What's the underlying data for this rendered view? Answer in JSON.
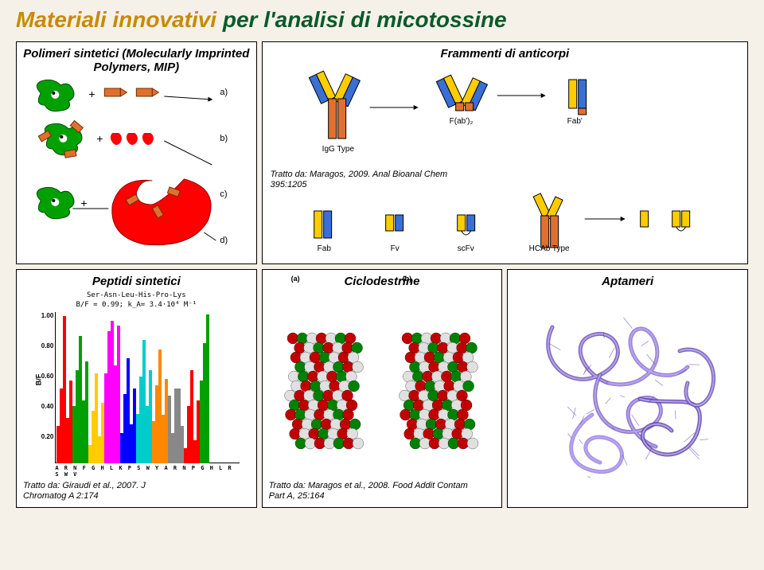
{
  "title": {
    "part1": "Materiali innovativi ",
    "part2": "per l'analisi di micotossine"
  },
  "cells": {
    "mip": {
      "header": "Polimeri sintetici (Molecularly Imprinted Polymers, MIP)"
    },
    "antibody": {
      "header": "Frammenti di anticorpi",
      "caption": "Tratto da: Maragos, 2009. Anal Bioanal Chem 395:1205",
      "labels": [
        "IgG Type",
        "F(ab')₂",
        "Fab'",
        "Fab",
        "Fv",
        "scFv",
        "HCAb Type"
      ]
    },
    "peptide": {
      "header": "Peptidi sintetici",
      "seq": "Ser-Asn-Leu-His-Pro-Lys",
      "bf": "B/F = 0.99; k_A= 3.4·10⁴ M⁻¹",
      "caption": "Tratto da: Giraudi et al., 2007. J Chromatog  A  2:174",
      "ylabel": "B/F",
      "yticks": [
        {
          "v": "1.00",
          "pos": 0
        },
        {
          "v": "0.80",
          "pos": 38
        },
        {
          "v": "0.60",
          "pos": 76
        },
        {
          "v": "0.40",
          "pos": 114
        },
        {
          "v": "0.20",
          "pos": 152
        }
      ],
      "xcats": "A R N F G H L K P S W Y A R N P G H L R S W V",
      "colors": [
        "#ff0000",
        "#00a000",
        "#ffcc00",
        "#ff00ff",
        "#0000ff",
        "#00cccc",
        "#ff8800",
        "#888888",
        "#ff0000",
        "#00a000",
        "#ffcc00",
        "#ff00ff"
      ],
      "bars": [
        [
          0.25,
          0.38,
          0.12,
          0.6,
          0.2,
          0.33,
          0.28,
          0.45,
          0.1,
          0.55,
          0.18,
          0.3
        ],
        [
          0.5,
          0.62,
          0.35,
          0.88,
          0.46,
          0.58,
          0.52,
          0.2,
          0.38,
          0.8,
          0.42,
          0.55
        ],
        [
          0.98,
          0.85,
          0.6,
          0.95,
          0.7,
          0.82,
          0.76,
          0.5,
          0.62,
          0.99,
          0.68,
          0.78
        ],
        [
          0.3,
          0.42,
          0.18,
          0.65,
          0.26,
          0.38,
          0.32,
          0.5,
          0.15,
          0.6,
          0.22,
          0.35
        ],
        [
          0.55,
          0.68,
          0.4,
          0.92,
          0.5,
          0.62,
          0.56,
          0.25,
          0.42,
          0.85,
          0.46,
          0.6
        ]
      ]
    },
    "cyclodextrin": {
      "header": "Ciclodestrine",
      "caption": "Tratto da: Maragos et al., 2008. Food Addit Contam Part A, 25:164",
      "a": "(a)",
      "b": "(b)"
    },
    "aptamer": {
      "header": "Aptameri"
    }
  },
  "style": {
    "accent_color": "#c88a00",
    "main_color": "#0a5a2a",
    "bg": "#f5f0e8"
  }
}
